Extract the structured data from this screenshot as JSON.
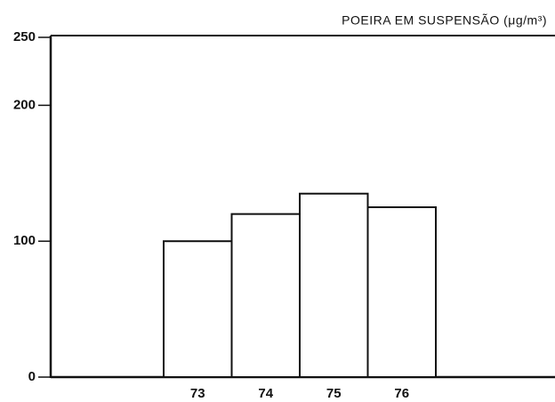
{
  "chart_data": {
    "type": "bar",
    "title": "POEIRA EM SUSPENSÃO (μg/m³)",
    "categories": [
      "73",
      "74",
      "75",
      "76"
    ],
    "values": [
      100,
      120,
      135,
      125
    ],
    "color": "#ffffff",
    "ylim": [
      0,
      250
    ],
    "yticks": [
      0,
      100,
      200,
      250
    ],
    "grid": false
  }
}
